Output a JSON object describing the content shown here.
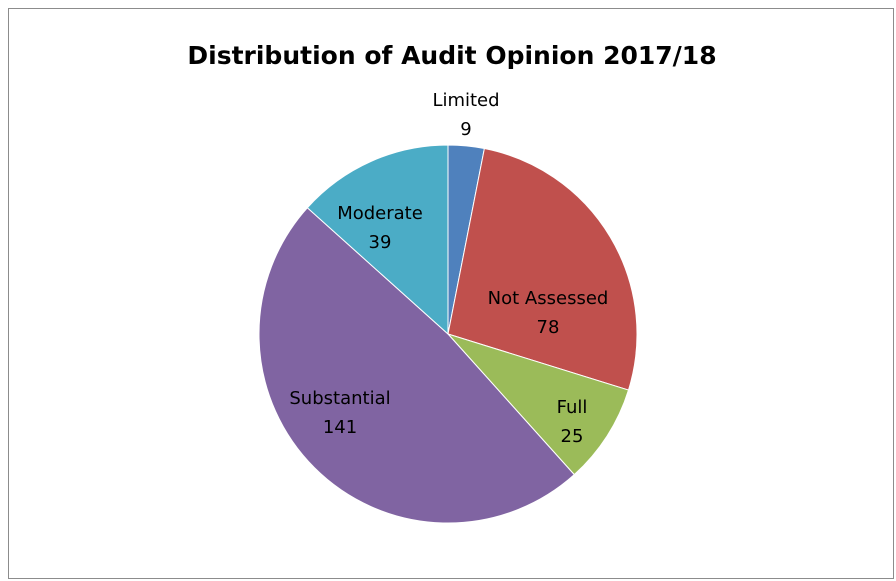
{
  "chart_data": {
    "type": "pie",
    "title": "Distribution of Audit Opinion 2017/18",
    "slices": [
      {
        "label": "Limited",
        "value": 9,
        "color": "#4f81bd"
      },
      {
        "label": "Not Assessed",
        "value": 78,
        "color": "#c0504d"
      },
      {
        "label": "Full",
        "value": 25,
        "color": "#9bbb59"
      },
      {
        "label": "Substantial",
        "value": 141,
        "color": "#8064a2"
      },
      {
        "label": "Moderate",
        "value": 39,
        "color": "#4bacc6"
      }
    ],
    "start_angle_deg": 0,
    "direction": "clockwise",
    "legend": "none",
    "data_labels": "category and value"
  }
}
